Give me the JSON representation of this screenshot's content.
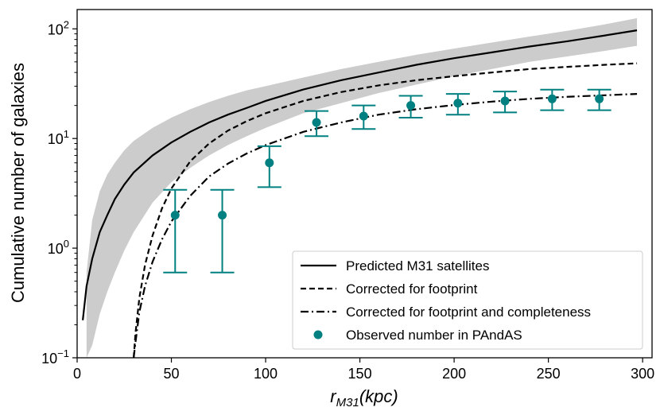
{
  "chart_data": {
    "type": "line",
    "title": "",
    "xlabel": "r_M31(kpc)",
    "xlabel_main": "r",
    "xlabel_sub": "M31",
    "xlabel_unit": "(kpc)",
    "ylabel": "Cumulative number of galaxies",
    "xlim": [
      0,
      305
    ],
    "ylim": [
      0.1,
      150
    ],
    "yscale": "log",
    "xticks": [
      0,
      50,
      100,
      150,
      200,
      250,
      300
    ],
    "xtick_labels": [
      "0",
      "50",
      "100",
      "150",
      "200",
      "250",
      "300"
    ],
    "yticks": [
      {
        "value": 0.1,
        "base": "10",
        "exp": "−1"
      },
      {
        "value": 1,
        "base": "10",
        "exp": "0"
      },
      {
        "value": 10,
        "base": "10",
        "exp": "1"
      },
      {
        "value": 100,
        "base": "10",
        "exp": "2"
      }
    ],
    "legend_position": "lower-right",
    "series": [
      {
        "name": "Predicted M31 satellites",
        "style": "solid",
        "color": "#000000",
        "x": [
          3,
          5,
          8,
          12,
          16,
          20,
          25,
          30,
          40,
          50,
          60,
          70,
          80,
          90,
          100,
          120,
          140,
          160,
          180,
          200,
          220,
          240,
          260,
          280,
          297
        ],
        "y": [
          0.22,
          0.45,
          0.8,
          1.4,
          2.0,
          2.8,
          3.8,
          4.9,
          7.0,
          9.2,
          11.5,
          14,
          16.5,
          19,
          22,
          28,
          34,
          40,
          47,
          54,
          61,
          69,
          77,
          87,
          97
        ]
      },
      {
        "name": "Predicted range",
        "style": "band",
        "color": "#cccccc",
        "x": [
          5,
          8,
          12,
          16,
          20,
          25,
          30,
          40,
          50,
          60,
          70,
          80,
          90,
          100,
          120,
          140,
          160,
          180,
          200,
          220,
          240,
          260,
          280,
          297
        ],
        "y_low": [
          0.1,
          0.13,
          0.25,
          0.4,
          0.6,
          0.95,
          1.4,
          2.6,
          4.0,
          5.4,
          7.0,
          8.7,
          10.5,
          12.5,
          17,
          21,
          26,
          31,
          37,
          43,
          50,
          56,
          63,
          70
        ],
        "y_high": [
          0.6,
          1.8,
          3.3,
          4.7,
          6.0,
          7.8,
          9.5,
          12.5,
          15.5,
          18.5,
          21.5,
          24.5,
          27.5,
          30,
          36,
          43,
          50,
          58,
          66,
          75,
          85,
          96,
          110,
          125
        ]
      },
      {
        "name": "Corrected for footprint",
        "style": "dashed",
        "color": "#000000",
        "x": [
          30,
          31,
          33,
          36,
          40,
          45,
          50,
          60,
          70,
          80,
          90,
          100,
          120,
          140,
          160,
          180,
          200,
          220,
          240,
          260,
          280,
          297
        ],
        "y": [
          0.1,
          0.17,
          0.35,
          0.7,
          1.3,
          2.3,
          3.5,
          6.2,
          9.0,
          11.8,
          14.4,
          17,
          22,
          26.5,
          30.5,
          34,
          37,
          40,
          43,
          45,
          47,
          48.5
        ]
      },
      {
        "name": "Corrected for footprint and completeness",
        "style": "dashdot",
        "color": "#000000",
        "x": [
          30,
          31,
          33,
          36,
          40,
          45,
          50,
          60,
          70,
          80,
          90,
          100,
          120,
          140,
          160,
          180,
          200,
          220,
          240,
          260,
          280,
          297
        ],
        "y": [
          0.1,
          0.14,
          0.26,
          0.45,
          0.75,
          1.2,
          1.75,
          3.0,
          4.5,
          5.9,
          7.3,
          8.7,
          11.5,
          14,
          16.5,
          18.5,
          20.2,
          21.7,
          23,
          24,
          24.8,
          25.5
        ]
      }
    ],
    "observed": {
      "name": "Observed number in PAndAS",
      "color": "#008080",
      "points": [
        {
          "x": 52,
          "y": 2,
          "lo": 0.6,
          "hi": 3.4
        },
        {
          "x": 77,
          "y": 2,
          "lo": 0.6,
          "hi": 3.4
        },
        {
          "x": 102,
          "y": 6,
          "lo": 3.6,
          "hi": 8.5
        },
        {
          "x": 127,
          "y": 14,
          "lo": 10.5,
          "hi": 17.8
        },
        {
          "x": 152,
          "y": 16,
          "lo": 12.2,
          "hi": 20
        },
        {
          "x": 177,
          "y": 20,
          "lo": 15.5,
          "hi": 24.5
        },
        {
          "x": 202,
          "y": 21,
          "lo": 16.5,
          "hi": 25.5
        },
        {
          "x": 227,
          "y": 22,
          "lo": 17.3,
          "hi": 26.8
        },
        {
          "x": 252,
          "y": 23,
          "lo": 18.1,
          "hi": 27.9
        },
        {
          "x": 277,
          "y": 23,
          "lo": 18.1,
          "hi": 27.9
        }
      ]
    }
  },
  "legend": {
    "items": [
      {
        "label": "Predicted M31 satellites",
        "style": "solid"
      },
      {
        "label": "Corrected for footprint",
        "style": "dashed"
      },
      {
        "label": "Corrected for footprint and completeness",
        "style": "dashdot"
      },
      {
        "label": "Observed number in PAndAS",
        "style": "marker"
      }
    ]
  }
}
